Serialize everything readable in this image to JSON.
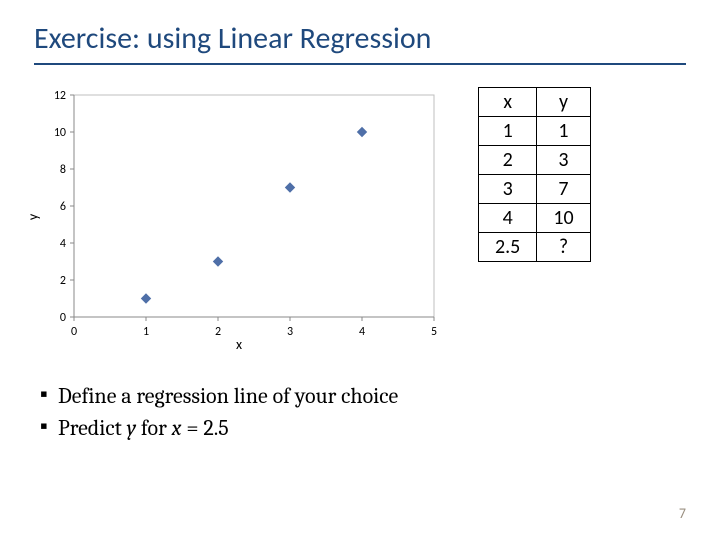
{
  "title": "Exercise: using Linear Regression",
  "chart": {
    "type": "scatter",
    "xlabel": "x",
    "ylabel": "y",
    "xlim": [
      0,
      5
    ],
    "ylim": [
      0,
      12
    ],
    "xtick_step": 1,
    "ytick_step": 2,
    "xticks": [
      0,
      1,
      2,
      3,
      4,
      5
    ],
    "yticks": [
      0,
      2,
      4,
      6,
      8,
      10,
      12
    ],
    "points": [
      {
        "x": 1,
        "y": 1
      },
      {
        "x": 2,
        "y": 3
      },
      {
        "x": 3,
        "y": 7
      },
      {
        "x": 4,
        "y": 10
      }
    ],
    "marker": "diamond",
    "marker_size": 7,
    "marker_color": "#4f6fa8",
    "axis_color": "#888888",
    "grid_color": "#bfbfbf",
    "tick_mark_color": "#888888",
    "tick_font_size": 12,
    "tick_font_color": "#000000",
    "label_font_size": 14,
    "background_color": "#ffffff",
    "grid": false
  },
  "table": {
    "columns": [
      "x",
      "y"
    ],
    "rows": [
      [
        "1",
        "1"
      ],
      [
        "2",
        "3"
      ],
      [
        "3",
        "7"
      ],
      [
        "4",
        "10"
      ],
      [
        "2.5",
        "?"
      ]
    ],
    "border_color": "#000000",
    "cell_font_size": 20
  },
  "bullets": {
    "b1_prefix": "Define a regression line of your choice",
    "b2_prefix": "Predict ",
    "b2_y": "y",
    "b2_mid": " for ",
    "b2_x": "x",
    "b2_suffix": " = 2.5"
  },
  "page_number": "7"
}
